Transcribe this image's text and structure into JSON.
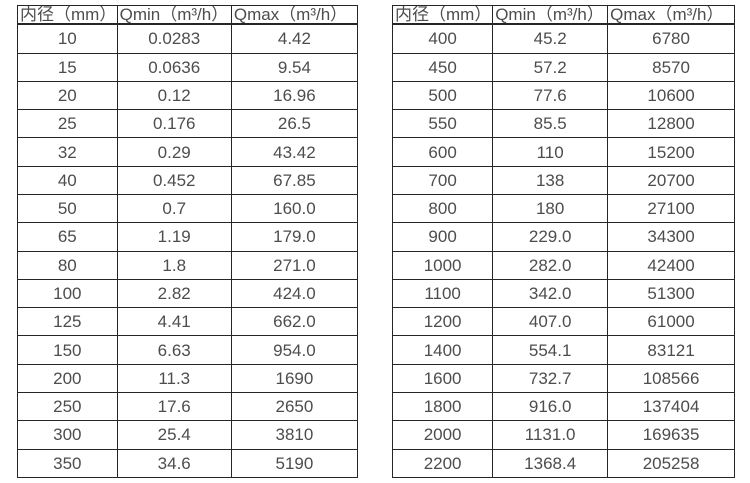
{
  "page": {
    "background_color": "#ffffff",
    "text_color": "#4d4d4d",
    "border_color": "#262626"
  },
  "tables": [
    {
      "name": "flow-spec-table-small-diameters",
      "headers": [
        "内径（mm）",
        "Qmin（m³/h）",
        "Qmax（m³/h）"
      ],
      "rows": [
        [
          "10",
          "0.0283",
          "4.42"
        ],
        [
          "15",
          "0.0636",
          "9.54"
        ],
        [
          "20",
          "0.12",
          "16.96"
        ],
        [
          "25",
          "0.176",
          "26.5"
        ],
        [
          "32",
          "0.29",
          "43.42"
        ],
        [
          "40",
          "0.452",
          "67.85"
        ],
        [
          "50",
          "0.7",
          "160.0"
        ],
        [
          "65",
          "1.19",
          "179.0"
        ],
        [
          "80",
          "1.8",
          "271.0"
        ],
        [
          "100",
          "2.82",
          "424.0"
        ],
        [
          "125",
          "4.41",
          "662.0"
        ],
        [
          "150",
          "6.63",
          "954.0"
        ],
        [
          "200",
          "11.3",
          "1690"
        ],
        [
          "250",
          "17.6",
          "2650"
        ],
        [
          "300",
          "25.4",
          "3810"
        ],
        [
          "350",
          "34.6",
          "5190"
        ]
      ]
    },
    {
      "name": "flow-spec-table-large-diameters",
      "headers": [
        "内径（mm）",
        "Qmin（m³/h）",
        "Qmax（m³/h）"
      ],
      "rows": [
        [
          "400",
          "45.2",
          "6780"
        ],
        [
          "450",
          "57.2",
          "8570"
        ],
        [
          "500",
          "77.6",
          "10600"
        ],
        [
          "550",
          "85.5",
          "12800"
        ],
        [
          "600",
          "110",
          "15200"
        ],
        [
          "700",
          "138",
          "20700"
        ],
        [
          "800",
          "180",
          "27100"
        ],
        [
          "900",
          "229.0",
          "34300"
        ],
        [
          "1000",
          "282.0",
          "42400"
        ],
        [
          "1100",
          "342.0",
          "51300"
        ],
        [
          "1200",
          "407.0",
          "61000"
        ],
        [
          "1400",
          "554.1",
          "83121"
        ],
        [
          "1600",
          "732.7",
          "108566"
        ],
        [
          "1800",
          "916.0",
          "137404"
        ],
        [
          "2000",
          "1131.0",
          "169635"
        ],
        [
          "2200",
          "1368.4",
          "205258"
        ]
      ]
    }
  ]
}
